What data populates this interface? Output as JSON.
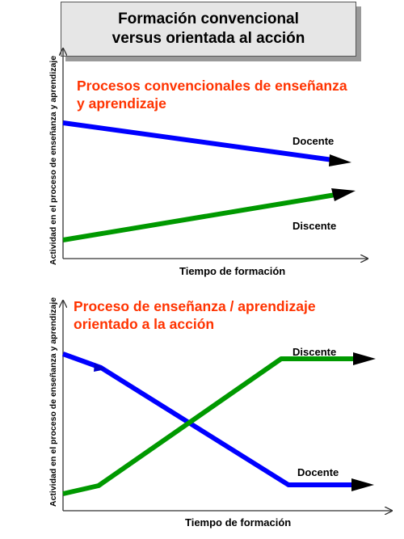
{
  "title": {
    "line1": "Formación convencional",
    "line2": "versus orientada al acción"
  },
  "chart1": {
    "ylabel": "Actividad en el proceso de enseñanza y aprendizaje",
    "xlabel": "Tiempo de formación",
    "heading_line1": "Procesos convencionales de enseñanza",
    "heading_line2": "y aprendizaje",
    "series": [
      {
        "name": "Docente",
        "color": "#0000ff"
      },
      {
        "name": "Discente",
        "color": "#009900"
      }
    ]
  },
  "chart2": {
    "ylabel": "Actividad en el proceso de enseñanza y aprendizaje",
    "xlabel": "Tiempo de formación",
    "heading_line1": "Proceso de enseñanza / aprendizaje",
    "heading_line2": "orientado a la acción",
    "series": [
      {
        "name": "Discente",
        "color": "#009900"
      },
      {
        "name": "Docente",
        "color": "#0000ff"
      }
    ]
  }
}
